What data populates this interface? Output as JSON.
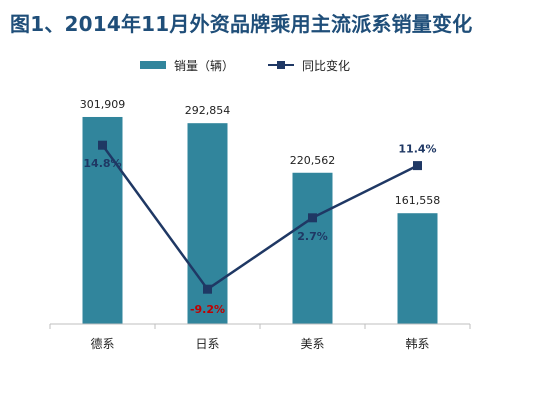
{
  "chart_data": {
    "type": "bar",
    "title": "图1、2014年11月外资品牌乘用主流派系销量变化",
    "categories": [
      "德系",
      "日系",
      "美系",
      "韩系"
    ],
    "series": [
      {
        "name": "销量（辆）",
        "type": "bar",
        "values": [
          301909,
          292854,
          220562,
          161558
        ],
        "labels": [
          "301,909",
          "292,854",
          "220,562",
          "161,558"
        ]
      },
      {
        "name": "同比变化",
        "type": "line",
        "values": [
          14.8,
          -9.2,
          2.7,
          11.4
        ],
        "labels": [
          "14.8%",
          "-9.2%",
          "2.7%",
          "11.4%"
        ]
      }
    ],
    "xlabel": "",
    "ylabel": "",
    "bar_axis_range": [
      0,
      350000
    ],
    "line_axis_range": [
      -15,
      25
    ],
    "grid": false,
    "legend_position": "top",
    "colors": {
      "bar": "#31859c",
      "line": "#1f3864",
      "title": "#1f4e79",
      "positive_label": "#1f3864",
      "negative_label": "#c00000",
      "axis": "#bfbfbf"
    }
  }
}
